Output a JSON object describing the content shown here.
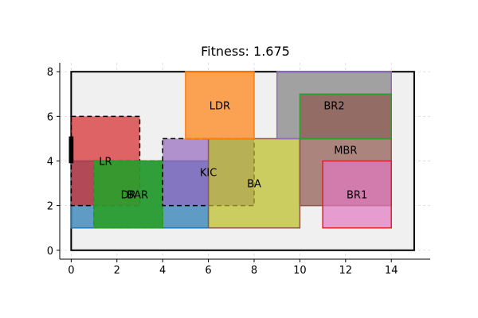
{
  "chart_data": {
    "type": "floorplan",
    "title": "Fitness: 1.675",
    "xlim": [
      -0.5,
      15.7
    ],
    "ylim": [
      -0.4,
      8.4
    ],
    "xticks": [
      0,
      2,
      4,
      6,
      8,
      10,
      12,
      14
    ],
    "yticks": [
      0,
      2,
      4,
      6,
      8
    ],
    "grid": true,
    "boundary": {
      "x": 0,
      "y": 0,
      "w": 15,
      "h": 8,
      "fill": "#f0f0f0",
      "stroke": "#000000"
    },
    "entrance": {
      "x": -0.1,
      "y": 3.9,
      "w": 0.2,
      "h": 1.2
    },
    "rooms": [
      {
        "name": "LR",
        "x": 0,
        "y": 1,
        "w": 6,
        "h": 3,
        "fill": "#1f77b4",
        "stroke": "#1f77b4",
        "dashed": false,
        "label_x": 1.5,
        "label_y": 4.0
      },
      {
        "name": "LR",
        "x": 0,
        "y": 2,
        "w": 3,
        "h": 4,
        "fill": "#d62728",
        "stroke": "#000000",
        "dashed": true,
        "label_x": 1.5,
        "label_y": 4.0
      },
      {
        "name": "DR",
        "x": 1,
        "y": 1,
        "w": 3,
        "h": 3,
        "fill": "#2ca02c",
        "stroke": "#000000",
        "dashed": true,
        "label_x": 2.5,
        "label_y": 2.5
      },
      {
        "name": "BAR",
        "x": 1,
        "y": 1,
        "w": 3,
        "h": 3,
        "fill": "#2ca02c",
        "stroke": "#2ca02c",
        "dashed": false,
        "label_x": 2.9,
        "label_y": 2.5
      },
      {
        "name": "KIC",
        "x": 4,
        "y": 2,
        "w": 4,
        "h": 3,
        "fill": "#9467bd",
        "stroke": "#000000",
        "dashed": true,
        "label_x": 6.0,
        "label_y": 3.5
      },
      {
        "name": "BA",
        "x": 6,
        "y": 1,
        "w": 4,
        "h": 4,
        "fill": "#bcbd22",
        "stroke": "#8c564b",
        "dashed": false,
        "label_x": 8.0,
        "label_y": 3.0
      },
      {
        "name": "LDR",
        "x": 5,
        "y": 5,
        "w": 3,
        "h": 3,
        "fill": "#ff7f0e",
        "stroke": "#ff7f0e",
        "dashed": false,
        "label_x": 6.5,
        "label_y": 6.5
      },
      {
        "name": "MBR",
        "x": 9,
        "y": 5,
        "w": 5,
        "h": 3,
        "fill": "#7f7f7f",
        "stroke": "#9467bd",
        "dashed": false,
        "label_x": 12.0,
        "label_y": 4.5
      },
      {
        "name": "MBR",
        "x": 10,
        "y": 2,
        "w": 4,
        "h": 3,
        "fill": "#8c564b",
        "stroke": "#8c564b",
        "dashed": false,
        "label_x": 12.0,
        "label_y": 4.5
      },
      {
        "name": "BR2",
        "x": 10,
        "y": 5,
        "w": 4,
        "h": 2,
        "fill": "#8c564b",
        "stroke": "#2ca02c",
        "dashed": false,
        "label_x": 11.5,
        "label_y": 6.5
      },
      {
        "name": "BR1",
        "x": 11,
        "y": 1,
        "w": 3,
        "h": 3,
        "fill": "#e377c2",
        "stroke": "#d62728",
        "dashed": false,
        "label_x": 12.5,
        "label_y": 2.5
      }
    ],
    "labels": [
      {
        "text": "LDR",
        "x": 6.5,
        "y": 6.5
      },
      {
        "text": "BR2",
        "x": 11.5,
        "y": 6.5
      },
      {
        "text": "MBR",
        "x": 12.0,
        "y": 4.5
      },
      {
        "text": "LR",
        "x": 1.5,
        "y": 4.0
      },
      {
        "text": "KIC",
        "x": 6.0,
        "y": 3.5
      },
      {
        "text": "BA",
        "x": 8.0,
        "y": 3.0
      },
      {
        "text": "DR",
        "x": 2.5,
        "y": 2.5
      },
      {
        "text": "BAR",
        "x": 2.9,
        "y": 2.5
      },
      {
        "text": "BR1",
        "x": 12.5,
        "y": 2.5
      }
    ]
  }
}
